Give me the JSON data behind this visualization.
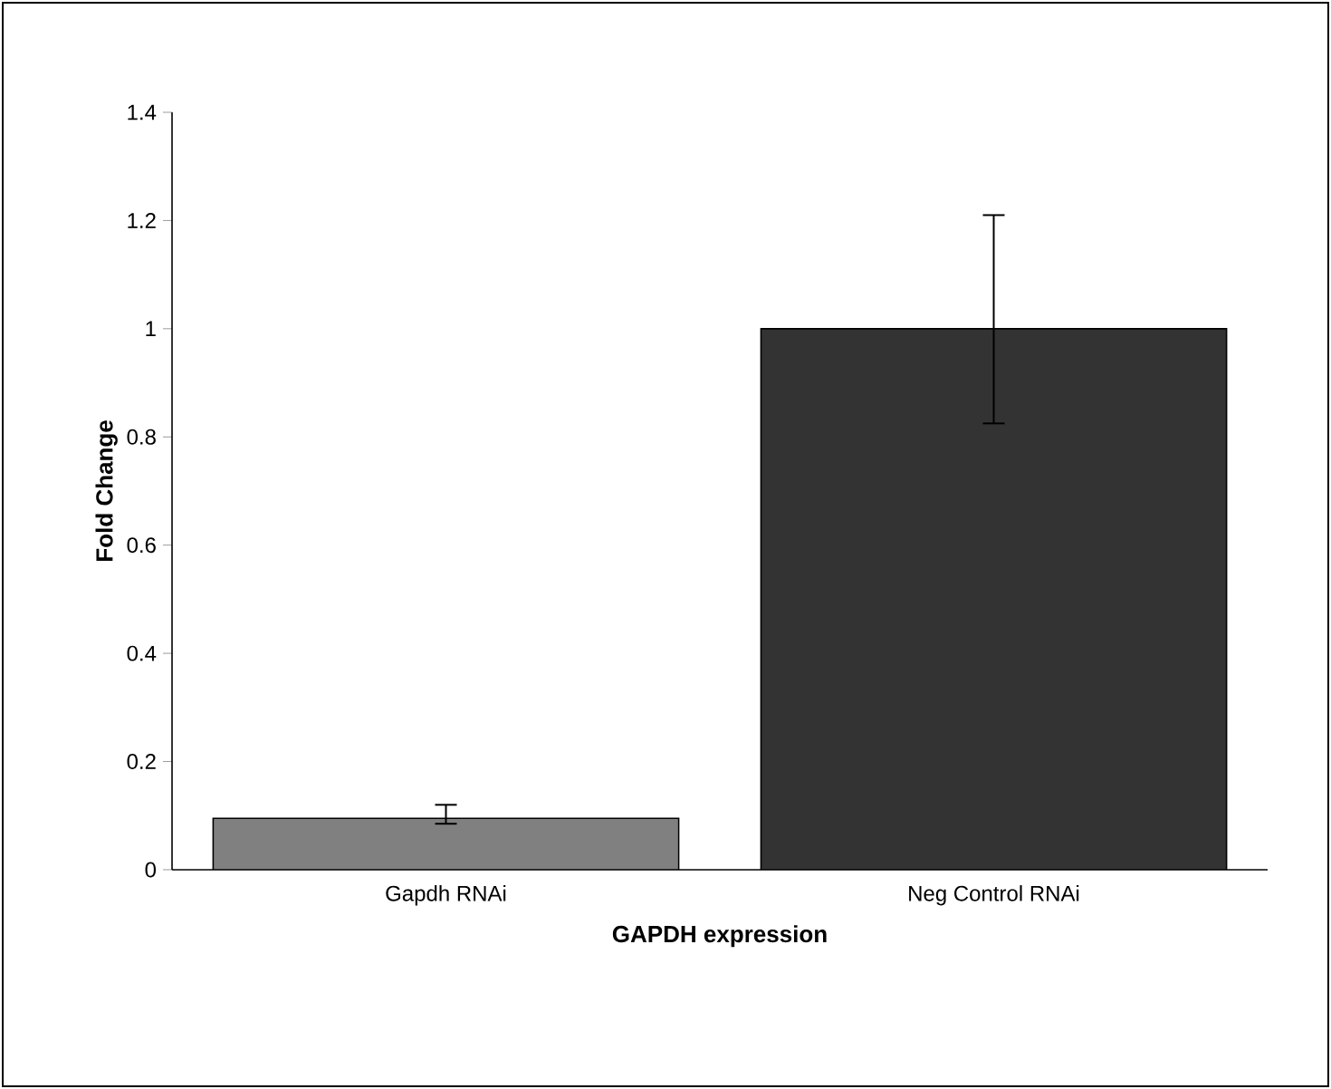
{
  "chart_data": {
    "type": "bar",
    "xlabel": "GAPDH expression",
    "ylabel": "Fold Change",
    "categories": [
      "Gapdh RNAi",
      "Neg Control RNAi"
    ],
    "values": [
      0.095,
      1.0
    ],
    "colors": [
      "#808080",
      "#333333"
    ],
    "errors": [
      [
        0.085,
        0.12
      ],
      [
        0.825,
        1.21
      ]
    ],
    "ylim": [
      0,
      1.4
    ],
    "yticks": [
      0,
      0.2,
      0.4,
      0.6,
      0.8,
      1,
      1.2,
      1.4
    ],
    "grid": false
  }
}
